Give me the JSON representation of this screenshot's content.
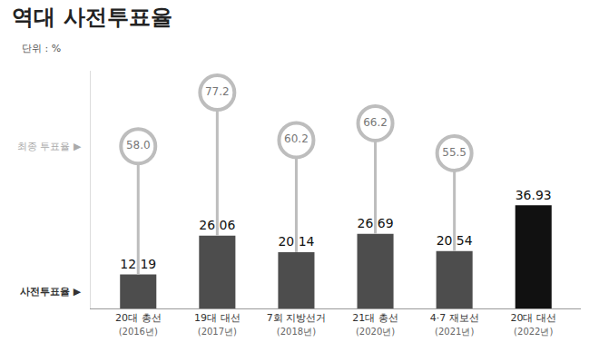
{
  "chart_data": {
    "type": "bar",
    "title": "역대 사전투표율",
    "subtitle": "단위 : %",
    "categories": [
      "20대 총선\n(2016년)",
      "19대 대선\n(2017년)",
      "7회 지방선거\n(2018년)",
      "21대 총선\n(2020년)",
      "4·7 재보선\n(2021년)",
      "20대 대선\n(2022년)"
    ],
    "series": [
      {
        "name": "사전투표율 ▶",
        "type": "bar",
        "values": [
          12.19,
          26.06,
          20.14,
          26.69,
          20.54,
          36.93
        ],
        "colors": [
          "#4d4d4d",
          "#4d4d4d",
          "#4d4d4d",
          "#4d4d4d",
          "#4d4d4d",
          "#111111"
        ]
      },
      {
        "name": "최종 투표율 ▶",
        "type": "scatter",
        "marker": "circle",
        "color": "#bdbdbd",
        "values": [
          58,
          77.2,
          60.2,
          66.2,
          55.5,
          null
        ],
        "value_labels": [
          "58.0",
          "77.2",
          "60.2",
          "66.2",
          "55.5",
          null
        ]
      }
    ],
    "ylim": [
      0,
      85
    ],
    "grid": false,
    "data_labels": true,
    "tick_labels": "x"
  }
}
